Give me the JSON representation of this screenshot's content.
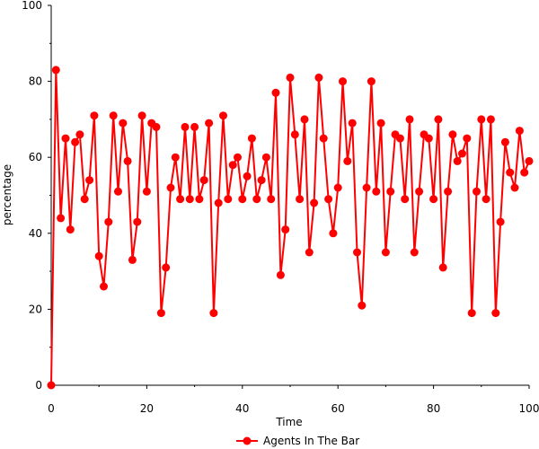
{
  "chart_data": {
    "type": "line",
    "title": "",
    "xlabel": "Time",
    "ylabel": "percentage",
    "xlim": [
      0,
      100
    ],
    "ylim": [
      0,
      100
    ],
    "x_ticks": [
      0,
      20,
      40,
      60,
      80,
      100
    ],
    "y_ticks": [
      0,
      20,
      40,
      60,
      80,
      100
    ],
    "grid": false,
    "legend_position": "bottom-center",
    "series": [
      {
        "name": "Agents In The Bar",
        "color": "#ff0000",
        "marker": "circle",
        "x": [
          0,
          1,
          2,
          3,
          4,
          5,
          6,
          7,
          8,
          9,
          10,
          11,
          12,
          13,
          14,
          15,
          16,
          17,
          18,
          19,
          20,
          21,
          22,
          23,
          24,
          25,
          26,
          27,
          28,
          29,
          30,
          31,
          32,
          33,
          34,
          35,
          36,
          37,
          38,
          39,
          40,
          41,
          42,
          43,
          44,
          45,
          46,
          47,
          48,
          49,
          50,
          51,
          52,
          53,
          54,
          55,
          56,
          57,
          58,
          59,
          60,
          61,
          62,
          63,
          64,
          65,
          66,
          67,
          68,
          69,
          70,
          71,
          72,
          73,
          74,
          75,
          76,
          77,
          78,
          79,
          80,
          81,
          82,
          83,
          84,
          85,
          86,
          87,
          88,
          89,
          90,
          91,
          92,
          93,
          94,
          95,
          96,
          97,
          98,
          99,
          100
        ],
        "values": [
          0,
          83,
          44,
          65,
          41,
          64,
          66,
          49,
          54,
          71,
          34,
          26,
          43,
          71,
          51,
          69,
          59,
          33,
          43,
          71,
          51,
          69,
          68,
          19,
          31,
          52,
          60,
          49,
          68,
          49,
          68,
          49,
          54,
          69,
          19,
          48,
          71,
          49,
          58,
          60,
          49,
          55,
          65,
          49,
          54,
          60,
          49,
          77,
          29,
          41,
          81,
          66,
          49,
          70,
          35,
          48,
          81,
          65,
          49,
          40,
          52,
          80,
          59,
          69,
          35,
          21,
          52,
          80,
          51,
          69,
          35,
          51,
          66,
          65,
          49,
          70,
          35,
          51,
          66,
          65,
          49,
          70,
          31,
          51,
          66,
          59,
          61,
          65,
          19,
          51,
          70,
          49,
          70,
          19,
          43,
          64,
          56,
          52,
          67,
          56,
          59
        ]
      }
    ]
  }
}
